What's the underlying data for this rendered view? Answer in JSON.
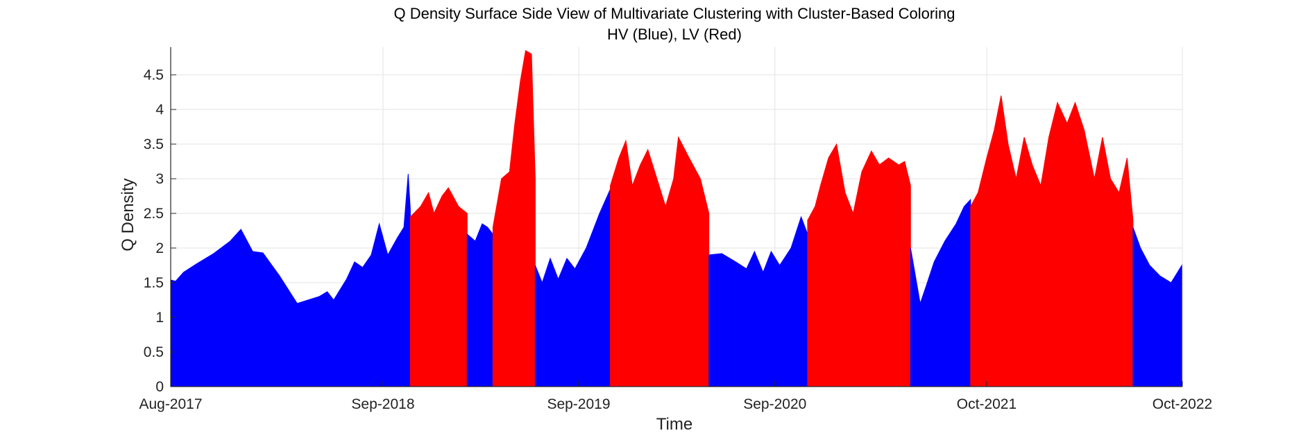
{
  "chart_data": {
    "type": "area",
    "title": "Q Density Surface Side View of Multivariate Clustering with Cluster-Based Coloring",
    "subtitle": "HV (Blue), LV (Red)",
    "xlabel": "Time",
    "ylabel": "Q Density",
    "x_axis": {
      "start": "2017-08",
      "end": "2022-10",
      "scale": "time"
    },
    "ylim": [
      0,
      4.9
    ],
    "x_ticks": [
      "Aug-2017",
      "Sep-2018",
      "Sep-2019",
      "Sep-2020",
      "Oct-2021",
      "Oct-2022"
    ],
    "y_ticks": [
      "0",
      "0.5",
      "1",
      "1.5",
      "2",
      "2.5",
      "3",
      "3.5",
      "4",
      "4.5"
    ],
    "grid": true,
    "colors": {
      "HV": "#0000ff",
      "LV": "#ff0000"
    },
    "series": [
      {
        "name": "HV",
        "color": "#0000ff",
        "points": [
          [
            "2017-08-01",
            1.54
          ],
          [
            "2017-08-10",
            1.52
          ],
          [
            "2017-08-25",
            1.65
          ],
          [
            "2017-09-20",
            1.78
          ],
          [
            "2017-10-20",
            1.92
          ],
          [
            "2017-11-20",
            2.1
          ],
          [
            "2017-12-10",
            2.27
          ],
          [
            "2018-01-01",
            1.95
          ],
          [
            "2018-01-20",
            1.93
          ],
          [
            "2018-02-20",
            1.6
          ],
          [
            "2018-03-25",
            1.2
          ],
          [
            "2018-05-05",
            1.3
          ],
          [
            "2018-05-20",
            1.37
          ],
          [
            "2018-06-01",
            1.25
          ],
          [
            "2018-06-25",
            1.55
          ],
          [
            "2018-07-10",
            1.8
          ],
          [
            "2018-07-25",
            1.72
          ],
          [
            "2018-08-10",
            1.9
          ],
          [
            "2018-08-25",
            2.35
          ],
          [
            "2018-09-10",
            1.9
          ],
          [
            "2018-09-28",
            2.15
          ],
          [
            "2018-10-10",
            2.3
          ],
          [
            "2018-10-18",
            3.07
          ],
          [
            "2018-10-22",
            2.55
          ]
        ]
      },
      {
        "name": "LV",
        "color": "#ff0000",
        "points": [
          [
            "2018-10-22",
            2.45
          ],
          [
            "2018-11-10",
            2.6
          ],
          [
            "2018-11-25",
            2.8
          ],
          [
            "2018-12-05",
            2.5
          ],
          [
            "2018-12-20",
            2.75
          ],
          [
            "2019-01-01",
            2.87
          ],
          [
            "2019-01-20",
            2.6
          ],
          [
            "2019-02-05",
            2.5
          ]
        ]
      },
      {
        "name": "HV",
        "color": "#0000ff",
        "points": [
          [
            "2019-02-05",
            2.2
          ],
          [
            "2019-02-20",
            2.1
          ],
          [
            "2019-03-05",
            2.35
          ],
          [
            "2019-03-15",
            2.3
          ],
          [
            "2019-03-25",
            2.2
          ]
        ]
      },
      {
        "name": "LV",
        "color": "#ff0000",
        "points": [
          [
            "2019-03-25",
            2.3
          ],
          [
            "2019-04-10",
            3.0
          ],
          [
            "2019-04-25",
            3.1
          ],
          [
            "2019-05-05",
            3.8
          ],
          [
            "2019-05-15",
            4.4
          ],
          [
            "2019-05-25",
            4.85
          ],
          [
            "2019-06-05",
            4.8
          ],
          [
            "2019-06-12",
            3.0
          ]
        ]
      },
      {
        "name": "HV",
        "color": "#0000ff",
        "points": [
          [
            "2019-06-12",
            1.75
          ],
          [
            "2019-06-25",
            1.5
          ],
          [
            "2019-07-10",
            1.85
          ],
          [
            "2019-07-25",
            1.55
          ],
          [
            "2019-08-10",
            1.85
          ],
          [
            "2019-08-25",
            1.7
          ],
          [
            "2019-09-15",
            2.0
          ],
          [
            "2019-10-10",
            2.5
          ],
          [
            "2019-10-30",
            2.85
          ]
        ]
      },
      {
        "name": "LV",
        "color": "#ff0000",
        "points": [
          [
            "2019-10-30",
            2.9
          ],
          [
            "2019-11-15",
            3.3
          ],
          [
            "2019-11-28",
            3.55
          ],
          [
            "2019-12-10",
            2.9
          ],
          [
            "2019-12-25",
            3.2
          ],
          [
            "2020-01-08",
            3.42
          ],
          [
            "2020-01-25",
            3.0
          ],
          [
            "2020-02-10",
            2.6
          ],
          [
            "2020-02-25",
            3.0
          ],
          [
            "2020-03-05",
            3.6
          ],
          [
            "2020-03-25",
            3.3
          ],
          [
            "2020-04-15",
            3.0
          ],
          [
            "2020-05-01",
            2.5
          ]
        ]
      },
      {
        "name": "HV",
        "color": "#0000ff",
        "points": [
          [
            "2020-05-01",
            1.9
          ],
          [
            "2020-05-25",
            1.92
          ],
          [
            "2020-06-20",
            1.8
          ],
          [
            "2020-07-10",
            1.7
          ],
          [
            "2020-07-25",
            1.95
          ],
          [
            "2020-08-10",
            1.65
          ],
          [
            "2020-08-25",
            1.95
          ],
          [
            "2020-09-10",
            1.75
          ],
          [
            "2020-10-01",
            2.0
          ],
          [
            "2020-10-20",
            2.45
          ],
          [
            "2020-11-01",
            2.2
          ]
        ]
      },
      {
        "name": "LV",
        "color": "#ff0000",
        "points": [
          [
            "2020-11-01",
            2.4
          ],
          [
            "2020-11-15",
            2.6
          ],
          [
            "2020-11-25",
            2.9
          ],
          [
            "2020-12-10",
            3.3
          ],
          [
            "2020-12-25",
            3.5
          ],
          [
            "2021-01-10",
            2.8
          ],
          [
            "2021-01-25",
            2.5
          ],
          [
            "2021-02-10",
            3.1
          ],
          [
            "2021-02-28",
            3.4
          ],
          [
            "2021-03-15",
            3.2
          ],
          [
            "2021-04-01",
            3.3
          ],
          [
            "2021-04-20",
            3.2
          ],
          [
            "2021-05-01",
            3.25
          ],
          [
            "2021-05-12",
            2.9
          ]
        ]
      },
      {
        "name": "HV",
        "color": "#0000ff",
        "points": [
          [
            "2021-05-12",
            2.0
          ],
          [
            "2021-05-30",
            1.2
          ],
          [
            "2021-06-10",
            1.45
          ],
          [
            "2021-06-25",
            1.8
          ],
          [
            "2021-07-15",
            2.1
          ],
          [
            "2021-08-05",
            2.35
          ],
          [
            "2021-08-20",
            2.6
          ],
          [
            "2021-09-01",
            2.7
          ]
        ]
      },
      {
        "name": "LV",
        "color": "#ff0000",
        "points": [
          [
            "2021-09-01",
            2.6
          ],
          [
            "2021-09-15",
            2.8
          ],
          [
            "2021-10-01",
            3.3
          ],
          [
            "2021-10-15",
            3.7
          ],
          [
            "2021-10-28",
            4.2
          ],
          [
            "2021-11-10",
            3.5
          ],
          [
            "2021-11-25",
            3.0
          ],
          [
            "2021-12-10",
            3.6
          ],
          [
            "2021-12-25",
            3.2
          ],
          [
            "2022-01-10",
            2.9
          ],
          [
            "2022-01-25",
            3.6
          ],
          [
            "2022-02-10",
            4.1
          ],
          [
            "2022-02-28",
            3.8
          ],
          [
            "2022-03-15",
            4.1
          ],
          [
            "2022-04-01",
            3.7
          ],
          [
            "2022-04-20",
            3.0
          ],
          [
            "2022-05-05",
            3.6
          ],
          [
            "2022-05-20",
            3.0
          ],
          [
            "2022-06-05",
            2.8
          ],
          [
            "2022-06-20",
            3.3
          ],
          [
            "2022-07-01",
            2.4
          ]
        ]
      },
      {
        "name": "HV",
        "color": "#0000ff",
        "points": [
          [
            "2022-07-01",
            2.3
          ],
          [
            "2022-07-15",
            2.0
          ],
          [
            "2022-08-01",
            1.75
          ],
          [
            "2022-08-20",
            1.6
          ],
          [
            "2022-09-10",
            1.5
          ],
          [
            "2022-09-30",
            1.75
          ]
        ]
      }
    ]
  }
}
